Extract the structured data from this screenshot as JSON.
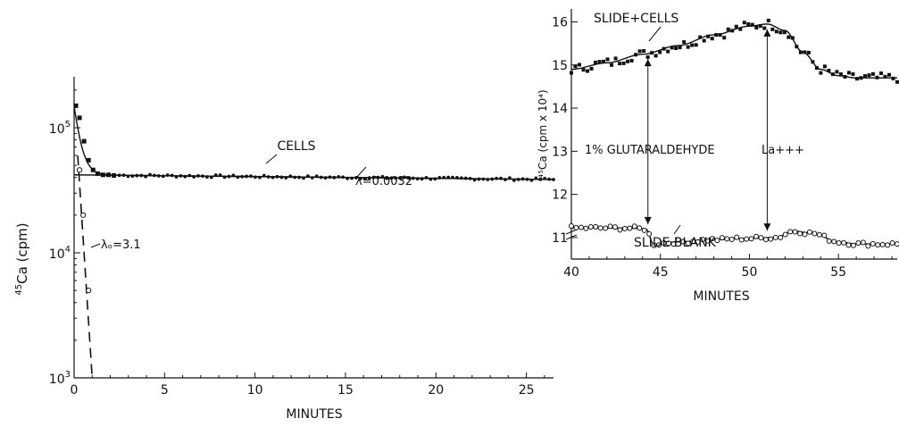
{
  "chart_data": [
    {
      "type": "scatter",
      "panel": "left",
      "yscale": "log",
      "xlabel": "MINUTES",
      "ylabel_sup": "45",
      "ylabel_main": "Ca (cpm)",
      "xlim": [
        0,
        26.5
      ],
      "ylim": [
        1000,
        200000
      ],
      "xticks": [
        0,
        5,
        10,
        15,
        20,
        25
      ],
      "yticks": [
        {
          "value": 1000,
          "base": "10",
          "exp": "3"
        },
        {
          "value": 10000,
          "base": "10",
          "exp": "4"
        },
        {
          "value": 100000,
          "base": "10",
          "exp": "5"
        }
      ],
      "series": [
        {
          "name": "CELLS",
          "marker": "filled-circle",
          "baseline": 41500,
          "fast_start": 150000,
          "fast_rate": 3.1,
          "slow_start": 42000,
          "slow_rate": 0.0032,
          "x": [
            0.1,
            0.3,
            0.55,
            0.8,
            1.05,
            1.3,
            1.6,
            1.9,
            2.2
          ],
          "y": [
            150000,
            120000,
            78000,
            55000,
            46000,
            43000,
            42000,
            42000,
            41500
          ],
          "dense_x_range": [
            2.5,
            26.5
          ],
          "dense_count": 100
        },
        {
          "name": "",
          "marker": "open-circle",
          "x": [
            0.3,
            0.5,
            0.8
          ],
          "y": [
            46000,
            20000,
            5000
          ]
        }
      ],
      "annotations": [
        {
          "text": "CELLS",
          "x": 11.8,
          "y": 52000
        },
        {
          "text": "λ=0.0032",
          "x": 17.3,
          "y": 34000
        },
        {
          "text": "λₒ=3.1",
          "x": 1.6,
          "y": 9500
        }
      ],
      "fit_line_labels": [
        "λ=0.0032",
        "λₒ=3.1"
      ]
    },
    {
      "type": "scatter",
      "panel": "right",
      "xlabel": "MINUTES",
      "ylabel": "⁴⁵Ca (cpm x 10⁴)",
      "xlim": [
        40,
        58.3
      ],
      "ylim": [
        10.5,
        16.3
      ],
      "axis_break": true,
      "xticks": [
        40,
        45,
        50,
        55
      ],
      "yticks": [
        11,
        12,
        13,
        14,
        15,
        16
      ],
      "series": [
        {
          "name": "SLIDE+CELLS",
          "marker": "filled-square",
          "trend_x": [
            40,
            42,
            44,
            46,
            48,
            50,
            51,
            52,
            53,
            54,
            55,
            56,
            57,
            58.3
          ],
          "trend_y": [
            14.9,
            15.05,
            15.25,
            15.45,
            15.7,
            15.9,
            15.95,
            15.8,
            15.3,
            14.9,
            14.75,
            14.7,
            14.7,
            14.7
          ],
          "point_count": 82
        },
        {
          "name": "SLIDE BLANK",
          "marker": "open-circle",
          "trend_x": [
            40,
            43,
            44.2,
            44.6,
            46,
            48,
            50,
            51.5,
            52.5,
            53.5,
            55,
            56,
            57,
            58.3
          ],
          "trend_y": [
            11.22,
            11.22,
            11.2,
            10.85,
            10.9,
            10.95,
            10.98,
            11.0,
            11.15,
            11.1,
            10.9,
            10.85,
            10.85,
            10.85
          ],
          "point_count": 68
        }
      ],
      "annotations": [
        {
          "text": "SLIDE+CELLS"
        },
        {
          "text": "1% GLUTARALDEHYDE",
          "arrow_x": 44.3
        },
        {
          "text": "La+++",
          "arrow_x": 51
        }
      ]
    }
  ]
}
